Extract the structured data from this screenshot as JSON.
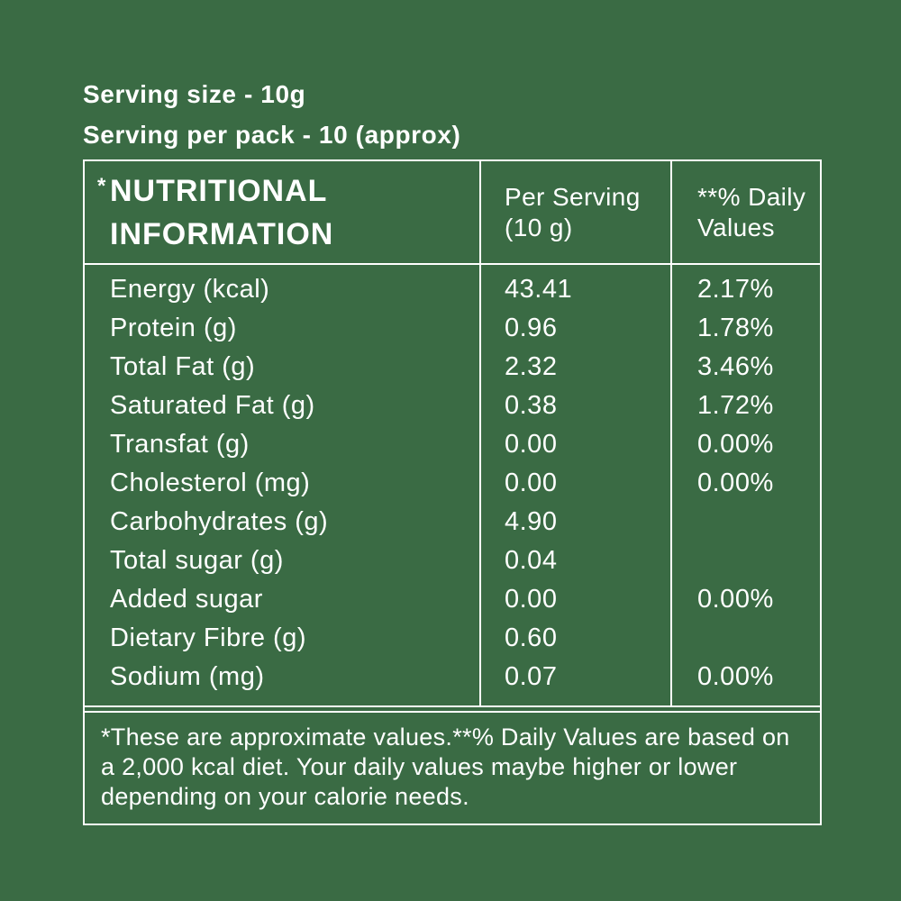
{
  "colors": {
    "background": "#3A6B44",
    "text": "#FFFFFF",
    "border": "#FFFFFF"
  },
  "serving": {
    "size_line": "Serving size - 10g",
    "per_pack_line": "Serving per pack - 10 (approx)"
  },
  "table": {
    "title_asterisk": "*",
    "title_line1": "NUTRITIONAL",
    "title_line2": "INFORMATION",
    "columns": {
      "per_serving_line1": "Per Serving",
      "per_serving_line2": "(10 g)",
      "daily_line1": "**% Daily",
      "daily_line2": "Values"
    },
    "rows": [
      {
        "label": "Energy (kcal)",
        "per_serving": "43.41",
        "daily_value": "2.17%"
      },
      {
        "label": "Protein (g)",
        "per_serving": "0.96",
        "daily_value": "1.78%"
      },
      {
        "label": "Total Fat (g)",
        "per_serving": "2.32",
        "daily_value": "3.46%"
      },
      {
        "label": "Saturated Fat (g)",
        "per_serving": "0.38",
        "daily_value": "1.72%"
      },
      {
        "label": "Transfat (g)",
        "per_serving": "0.00",
        "daily_value": "0.00%"
      },
      {
        "label": "Cholesterol (mg)",
        "per_serving": "0.00",
        "daily_value": "0.00%"
      },
      {
        "label": "Carbohydrates (g)",
        "per_serving": "4.90",
        "daily_value": ""
      },
      {
        "label": "Total sugar (g)",
        "per_serving": "0.04",
        "daily_value": ""
      },
      {
        "label": "Added sugar",
        "per_serving": "0.00",
        "daily_value": "0.00%"
      },
      {
        "label": "Dietary Fibre (g)",
        "per_serving": "0.60",
        "daily_value": ""
      },
      {
        "label": "Sodium (mg)",
        "per_serving": "0.07",
        "daily_value": "0.00%"
      }
    ],
    "footnote": "*These are approximate values.**% Daily Values are based on a 2,000 kcal diet. Your daily values maybe higher or lower depending on your calorie needs."
  }
}
